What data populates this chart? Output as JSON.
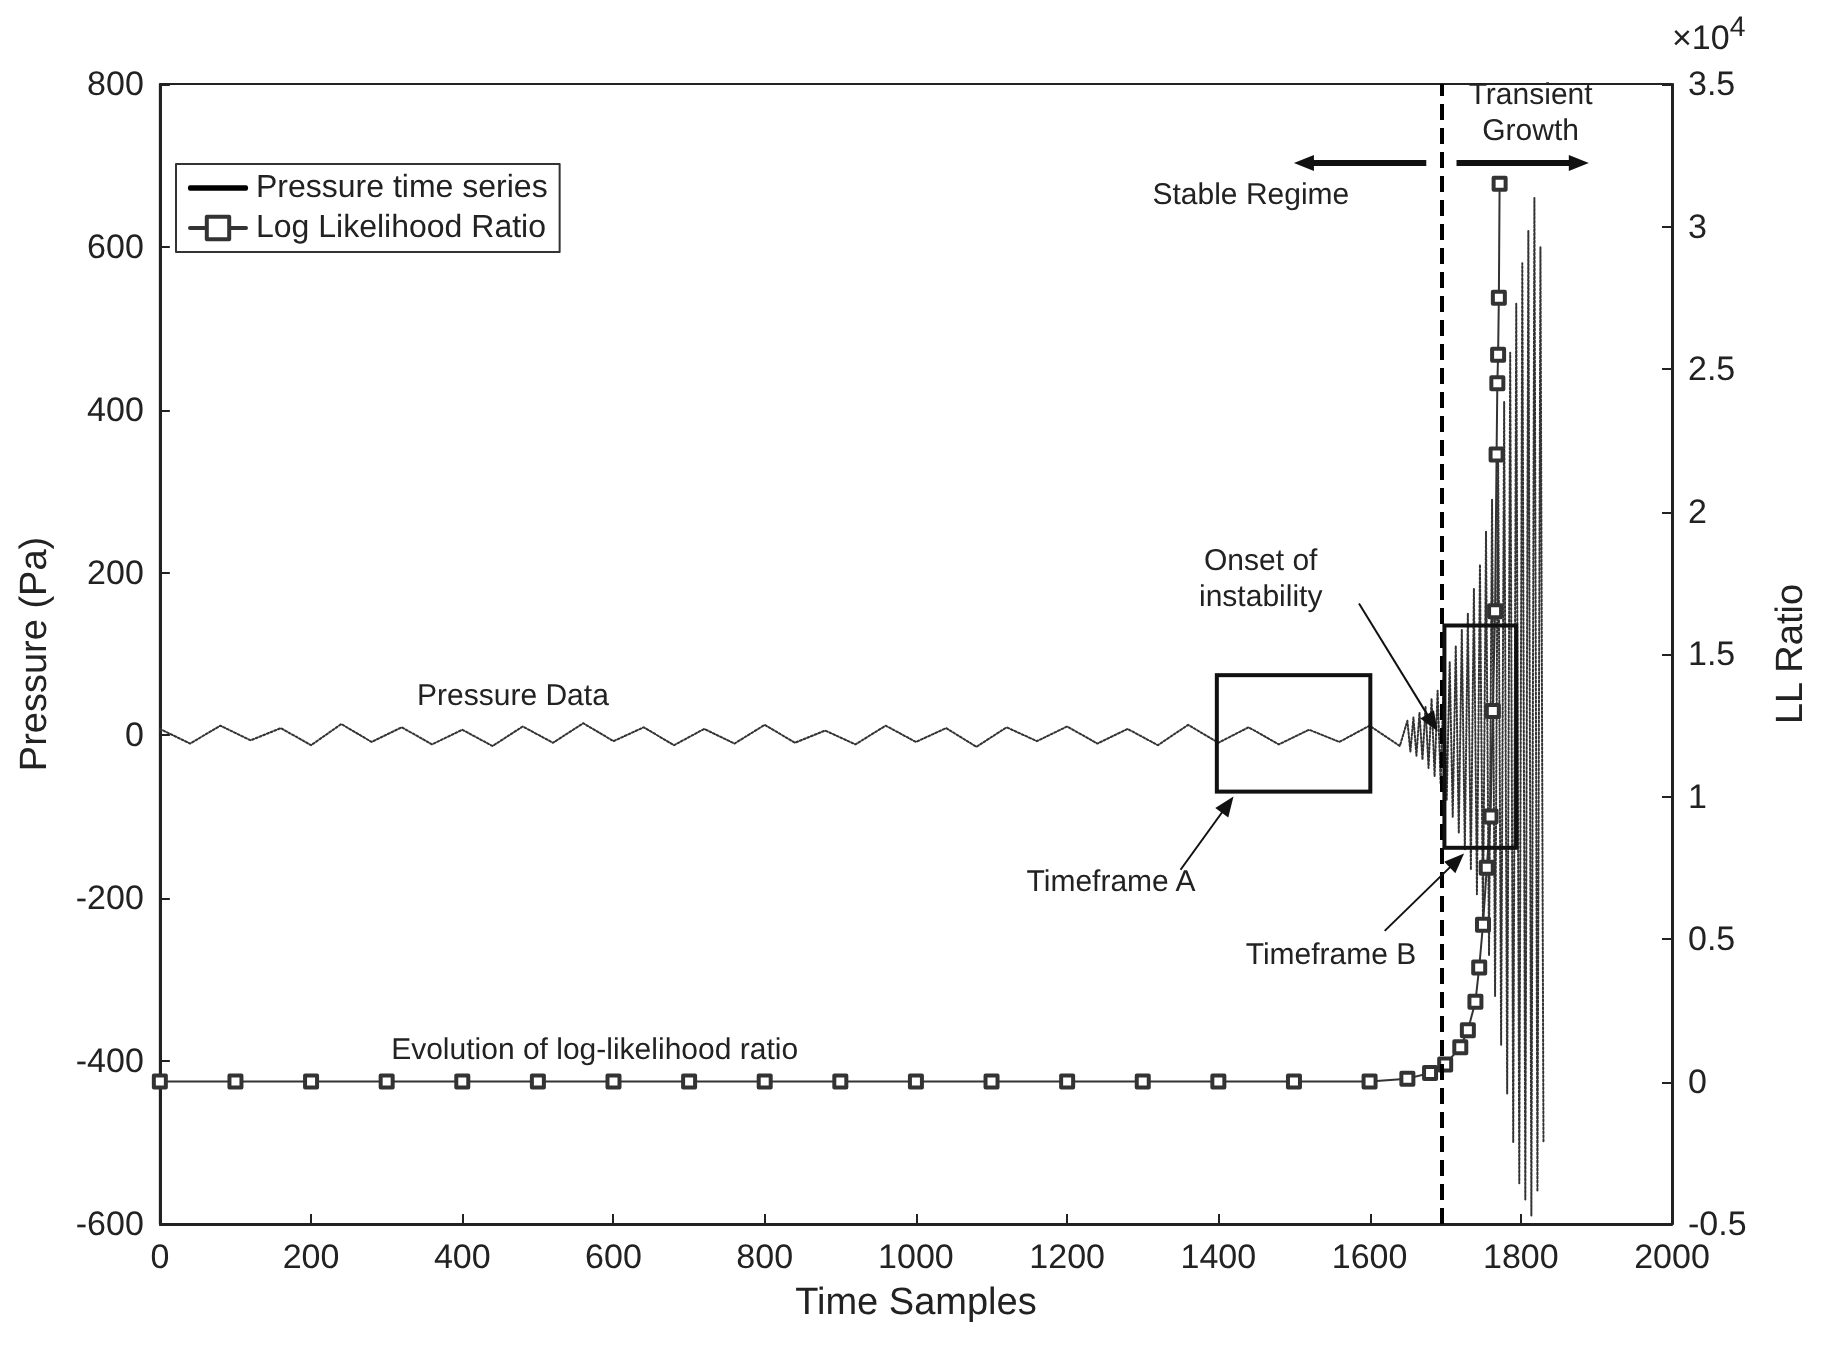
{
  "chart_data": {
    "type": "line",
    "xlabel": "Time Samples",
    "ylabel": "Pressure (Pa)",
    "y2label": "LL Ratio",
    "xlim": [
      0,
      2000
    ],
    "xticks": [
      0,
      200,
      400,
      600,
      800,
      1000,
      1200,
      1400,
      1600,
      1800,
      2000
    ],
    "ylim": [
      -600,
      800
    ],
    "yticks": [
      -600,
      -400,
      -200,
      0,
      200,
      400,
      600,
      800
    ],
    "y2lim": [
      -0.5,
      3.5
    ],
    "y2ticks": [
      -0.5,
      0,
      0.5,
      1,
      1.5,
      2,
      2.5,
      3,
      3.5
    ],
    "grid": false,
    "legend": "top left",
    "ref_lines": [
      {
        "axis": "x",
        "value": 1695,
        "label": null,
        "color": "#000000",
        "line_style": "dashed"
      }
    ],
    "annotations": [
      "Pressure Data",
      "Evolution of log-likelihood ratio",
      "Timeframe A",
      "Timeframe B",
      {
        "text": "Onset of\ninstability",
        "x": 1690,
        "y": 5
      },
      "Stable Regime",
      "Transient\nGrowth",
      "×10$^{4}$"
    ],
    "series": [
      {
        "name": "Pressure time series",
        "color": "#333333",
        "line_style": "dotted",
        "marker": "none",
        "x": [
          0,
          40,
          80,
          120,
          160,
          200,
          240,
          280,
          320,
          360,
          400,
          440,
          480,
          520,
          560,
          600,
          640,
          680,
          720,
          760,
          800,
          840,
          880,
          920,
          960,
          1000,
          1040,
          1080,
          1120,
          1160,
          1200,
          1240,
          1280,
          1320,
          1360,
          1400,
          1440,
          1480,
          1520,
          1560,
          1600,
          1640,
          1650,
          1654,
          1658,
          1662,
          1666,
          1670,
          1674,
          1678,
          1682,
          1686,
          1690,
          1694,
          1698,
          1702,
          1706,
          1710,
          1714,
          1718,
          1722,
          1726,
          1730,
          1734,
          1738,
          1742,
          1746,
          1750,
          1754,
          1758,
          1762,
          1766,
          1770,
          1774,
          1778,
          1782,
          1786,
          1790,
          1794,
          1798,
          1802,
          1806,
          1810,
          1814,
          1818,
          1822,
          1826,
          1830
        ],
        "values": [
          8,
          -10,
          12,
          -6,
          9,
          -12,
          14,
          -8,
          10,
          -11,
          7,
          -13,
          11,
          -9,
          15,
          -7,
          10,
          -12,
          8,
          -10,
          13,
          -9,
          6,
          -11,
          12,
          -8,
          9,
          -14,
          10,
          -7,
          11,
          -10,
          8,
          -12,
          13,
          -9,
          10,
          -11,
          7,
          -8,
          12,
          -13,
          18,
          -20,
          22,
          -25,
          28,
          -30,
          35,
          -40,
          45,
          -50,
          55,
          -60,
          70,
          -80,
          90,
          -100,
          110,
          -120,
          130,
          -140,
          150,
          -165,
          180,
          -195,
          210,
          -230,
          250,
          -270,
          290,
          -320,
          350,
          -380,
          410,
          -440,
          470,
          -500,
          530,
          -550,
          580,
          -570,
          620,
          -590,
          660,
          -560,
          600,
          -500
        ]
      },
      {
        "name": "Log Likelihood Ratio",
        "color": "#333333",
        "axis": "y2",
        "line_style": "solid",
        "marker": "square",
        "x": [
          0,
          100,
          200,
          300,
          400,
          500,
          600,
          700,
          800,
          900,
          1000,
          1100,
          1200,
          1300,
          1400,
          1500,
          1600,
          1650,
          1680,
          1700,
          1720,
          1730,
          1740,
          1745,
          1750,
          1755,
          1760,
          1763,
          1766,
          1768,
          1769,
          1770,
          1771,
          1772
        ],
        "values": [
          0,
          0,
          0,
          0,
          0,
          0,
          0,
          0,
          0,
          0,
          0,
          0,
          0,
          0,
          0,
          0,
          0,
          0.01,
          0.03,
          0.06,
          0.12,
          0.18,
          0.28,
          0.4,
          0.55,
          0.75,
          0.93,
          1.3,
          1.65,
          2.2,
          2.45,
          2.55,
          2.75,
          3.15
        ]
      }
    ]
  }
}
